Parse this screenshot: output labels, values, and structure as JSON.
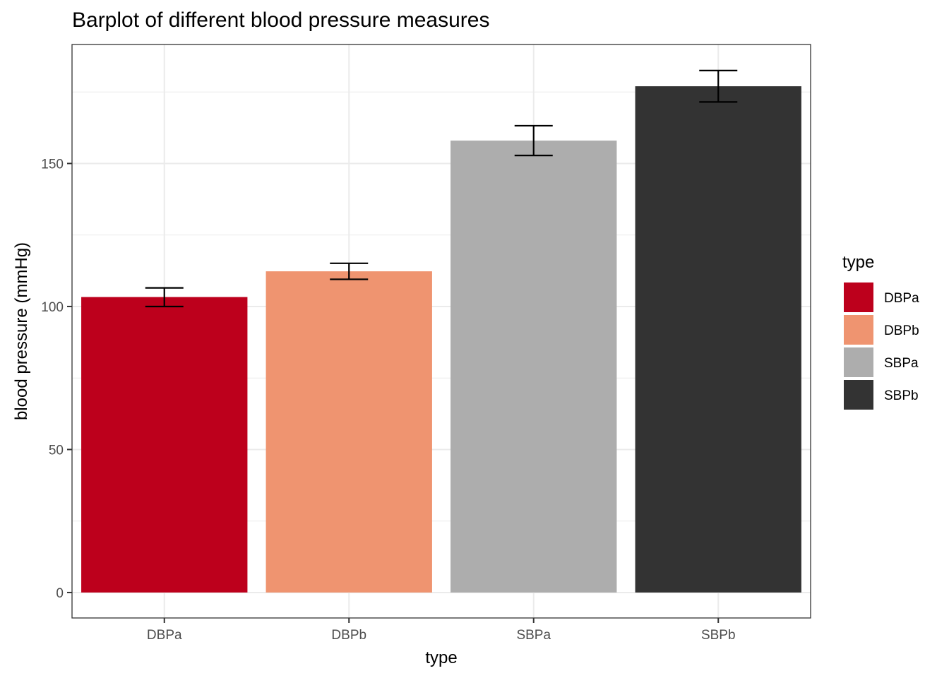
{
  "chart_data": {
    "type": "bar",
    "title": "Barplot of different blood pressure measures",
    "xlabel": "type",
    "ylabel": "blood pressure (mmHg)",
    "categories": [
      "DBPa",
      "DBPb",
      "SBPa",
      "SBPb"
    ],
    "values": [
      103.3,
      112.3,
      158.0,
      177.0
    ],
    "error_bars": {
      "lower": [
        100.0,
        109.5,
        152.8,
        171.5
      ],
      "upper": [
        106.5,
        115.1,
        163.2,
        182.5
      ]
    },
    "colors": [
      "#BD001C",
      "#EF9470",
      "#ADADAD",
      "#333333"
    ],
    "ylim": [
      -8.9,
      191.6
    ],
    "y_ticks": [
      0,
      50,
      100,
      150
    ],
    "grid": true,
    "legend": {
      "title": "type",
      "position": "right",
      "entries": [
        "DBPa",
        "DBPb",
        "SBPa",
        "SBPb"
      ]
    }
  }
}
